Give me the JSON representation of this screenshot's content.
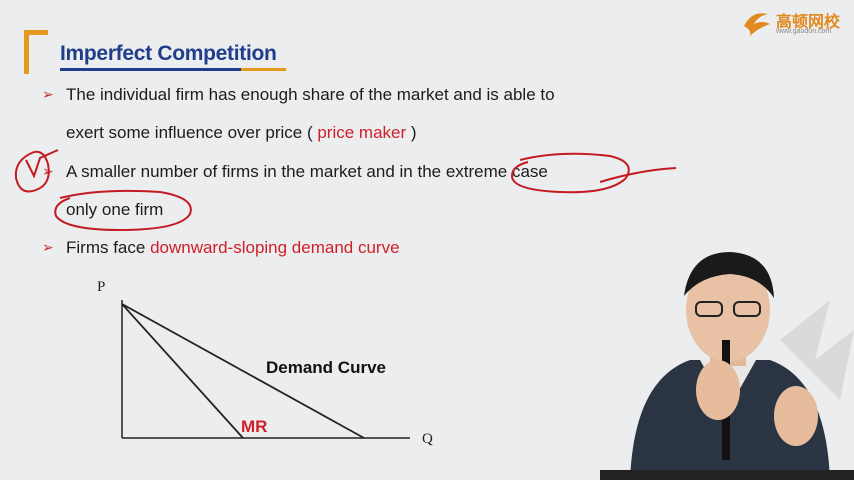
{
  "logo": {
    "text": "高顿网校",
    "url": "www.gaodun.com"
  },
  "title": "Imperfect Competition",
  "bullets": {
    "b1_line1": "The individual firm has enough share of the market and is able to",
    "b1_line2_pre": "exert some influence over price ( ",
    "b1_line2_red": "price maker",
    "b1_line2_post": " )",
    "b2_line1": "A smaller number of firms in the market and in the extreme case",
    "b2_line2": "only one firm",
    "b3_pre": "Firms face ",
    "b3_red": "downward-sloping demand curve"
  },
  "chart_data": {
    "type": "line",
    "xlabel": "Q",
    "ylabel": "P",
    "series": [
      {
        "name": "Demand Curve",
        "points": [
          [
            0,
            1
          ],
          [
            1,
            0
          ]
        ]
      },
      {
        "name": "MR",
        "points": [
          [
            0,
            1
          ],
          [
            0.5,
            0
          ]
        ]
      }
    ],
    "annotations": [
      "Demand Curve",
      "MR"
    ],
    "colors": {
      "demand_label": "#111111",
      "mr_label": "#d01f2a",
      "axes": "#222222"
    }
  },
  "colors": {
    "accent": "#e59a1f",
    "title": "#1f3d8a",
    "highlight": "#d01f2a",
    "ink": "#c41b22"
  }
}
